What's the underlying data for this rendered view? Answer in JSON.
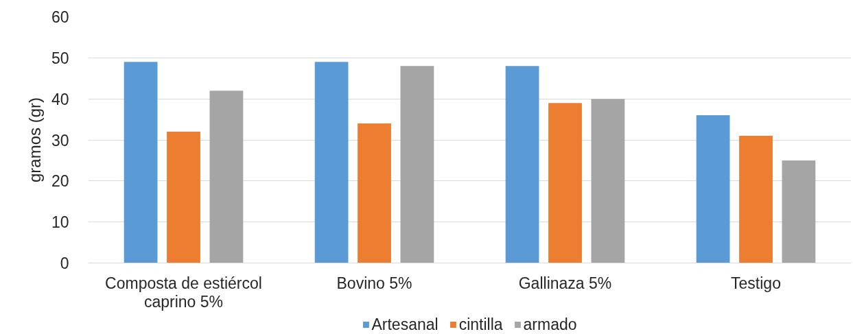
{
  "chart_data": {
    "type": "bar",
    "ylabel": "gramos (gr)",
    "categories": [
      "Composta de estiércol caprino 5%",
      "Bovino 5%",
      "Gallinaza 5%",
      "Testigo"
    ],
    "series": [
      {
        "name": "Artesanal",
        "color": "#5b9bd5",
        "values": [
          49,
          49,
          48,
          36
        ]
      },
      {
        "name": "cintilla",
        "color": "#ed7d31",
        "values": [
          32,
          34,
          39,
          31
        ]
      },
      {
        "name": "armado",
        "color": "#a5a5a5",
        "values": [
          42,
          48,
          40,
          25
        ]
      }
    ],
    "ylim": [
      0,
      60
    ],
    "yticks": [
      0,
      10,
      20,
      30,
      40,
      50,
      60
    ],
    "grid": "y",
    "legend": "bottom"
  }
}
